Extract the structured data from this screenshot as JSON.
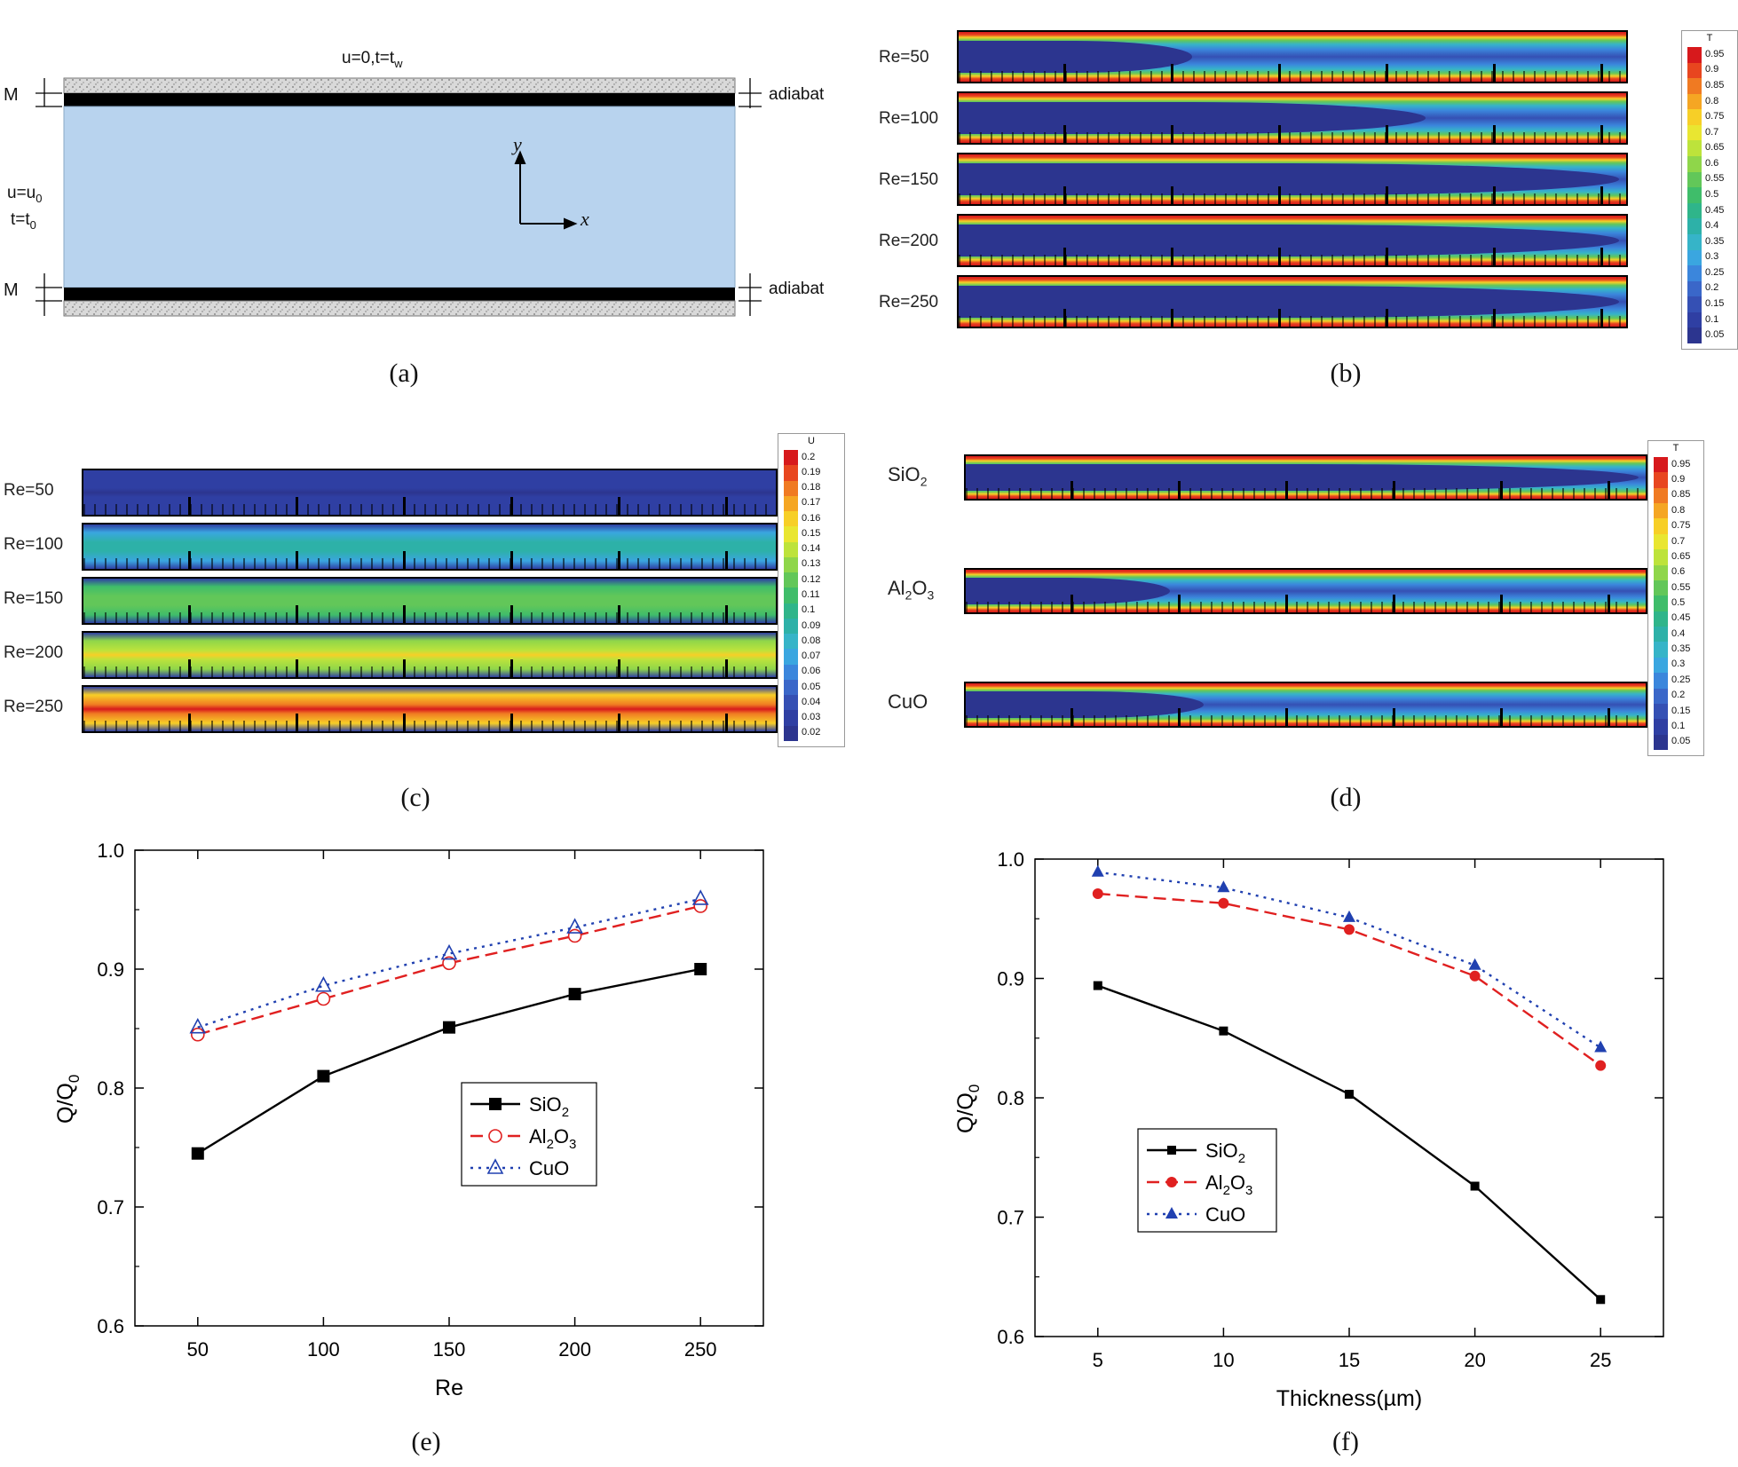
{
  "captions": {
    "a": "(a)",
    "b": "(b)",
    "c": "(c)",
    "d": "(d)",
    "e": "(e)",
    "f": "(f)"
  },
  "panel_a": {
    "top_bc": "u=0,t=t",
    "top_bc_sub": "w",
    "inlet_u": "u=u",
    "inlet_u_sub": "0",
    "inlet_t": "t=t",
    "inlet_t_sub": "0",
    "m_top": "M",
    "m_bottom": "M",
    "adiabat_top": "adiabat",
    "adiabat_bottom": "adiabat",
    "axis_y": "y",
    "axis_x": "x"
  },
  "panel_b": {
    "rows": [
      "Re=50",
      "Re=100",
      "Re=150",
      "Re=200",
      "Re=250"
    ],
    "legend_title": "T",
    "legend_levels": [
      "0.95",
      "0.9",
      "0.85",
      "0.8",
      "0.75",
      "0.7",
      "0.65",
      "0.6",
      "0.55",
      "0.5",
      "0.45",
      "0.4",
      "0.35",
      "0.3",
      "0.25",
      "0.2",
      "0.15",
      "0.1",
      "0.05"
    ]
  },
  "panel_c": {
    "rows": [
      "Re=50",
      "Re=100",
      "Re=150",
      "Re=200",
      "Re=250"
    ],
    "legend_title": "U",
    "legend_levels": [
      "0.2",
      "0.19",
      "0.18",
      "0.17",
      "0.16",
      "0.15",
      "0.14",
      "0.13",
      "0.12",
      "0.11",
      "0.1",
      "0.09",
      "0.08",
      "0.07",
      "0.06",
      "0.05",
      "0.04",
      "0.03",
      "0.02"
    ]
  },
  "panel_d": {
    "rows": [
      {
        "main": "SiO",
        "sub": "2",
        "tail": ""
      },
      {
        "main": "Al",
        "sub": "2",
        "tail": "O",
        "sub2": "3"
      },
      {
        "main": "CuO",
        "sub": "",
        "tail": ""
      }
    ],
    "legend_title": "T",
    "legend_levels": [
      "0.95",
      "0.9",
      "0.85",
      "0.8",
      "0.75",
      "0.7",
      "0.65",
      "0.6",
      "0.55",
      "0.5",
      "0.45",
      "0.4",
      "0.35",
      "0.3",
      "0.25",
      "0.2",
      "0.15",
      "0.1",
      "0.05"
    ]
  },
  "colors": {
    "channel_fill": "#b8d3ee",
    "series_sio2": "#000000",
    "series_al2o3": "#e02020",
    "series_cuo": "#2040b0",
    "scale": [
      "#d7191c",
      "#e8461f",
      "#f07a22",
      "#f5a623",
      "#f7cf27",
      "#e9e631",
      "#bde33b",
      "#8fd64a",
      "#62c759",
      "#3fbd6a",
      "#2fb58a",
      "#2db1a8",
      "#36b4c8",
      "#3aa6e0",
      "#3b86dc",
      "#3a67c9",
      "#3550b4",
      "#2f3fa3",
      "#2c358f"
    ]
  },
  "chart_data": [
    {
      "type": "line",
      "panel": "e",
      "xlabel": "Re",
      "ylabel": "Q/Q",
      "ylabel_sub": "0",
      "x": [
        50,
        100,
        150,
        200,
        250
      ],
      "xticks": [
        "50",
        "100",
        "150",
        "200",
        "250"
      ],
      "xlim": [
        25,
        275
      ],
      "ylim": [
        0.6,
        1.0
      ],
      "yticks": [
        "0.6",
        "0.7",
        "0.8",
        "0.9",
        "1.0"
      ],
      "legend_position": "center",
      "series": [
        {
          "name": "SiO2",
          "label_main": "SiO",
          "label_sub": "2",
          "label_tail": "",
          "label_sub2": "",
          "marker": "filled-square",
          "line": "solid",
          "values": [
            0.745,
            0.81,
            0.851,
            0.879,
            0.9
          ]
        },
        {
          "name": "Al2O3",
          "label_main": "Al",
          "label_sub": "2",
          "label_tail": "O",
          "label_sub2": "3",
          "marker": "open-circle",
          "line": "dashed",
          "values": [
            0.845,
            0.875,
            0.905,
            0.928,
            0.953
          ]
        },
        {
          "name": "CuO",
          "label_main": "CuO",
          "label_sub": "",
          "label_tail": "",
          "label_sub2": "",
          "marker": "open-triangle",
          "line": "dotted",
          "values": [
            0.851,
            0.886,
            0.913,
            0.935,
            0.959
          ]
        }
      ]
    },
    {
      "type": "line",
      "panel": "f",
      "xlabel": "Thickness(µm)",
      "ylabel": "Q/Q",
      "ylabel_sub": "0",
      "x": [
        5,
        10,
        15,
        20,
        25
      ],
      "xticks": [
        "5",
        "10",
        "15",
        "20",
        "25"
      ],
      "xlim": [
        2.5,
        27.5
      ],
      "ylim": [
        0.6,
        1.0
      ],
      "yticks": [
        "0.6",
        "0.7",
        "0.8",
        "0.9",
        "1.0"
      ],
      "legend_position": "center-left",
      "series": [
        {
          "name": "SiO2",
          "label_main": "SiO",
          "label_sub": "2",
          "label_tail": "",
          "label_sub2": "",
          "marker": "small-filled-square",
          "line": "solid",
          "values": [
            0.894,
            0.856,
            0.803,
            0.726,
            0.631
          ]
        },
        {
          "name": "Al2O3",
          "label_main": "Al",
          "label_sub": "2",
          "label_tail": "O",
          "label_sub2": "3",
          "marker": "filled-circle",
          "line": "dashed",
          "values": [
            0.971,
            0.963,
            0.941,
            0.902,
            0.827
          ]
        },
        {
          "name": "CuO",
          "label_main": "CuO",
          "label_sub": "",
          "label_tail": "",
          "label_sub2": "",
          "marker": "filled-triangle",
          "line": "dotted",
          "values": [
            0.989,
            0.976,
            0.951,
            0.911,
            0.842
          ]
        }
      ]
    }
  ]
}
